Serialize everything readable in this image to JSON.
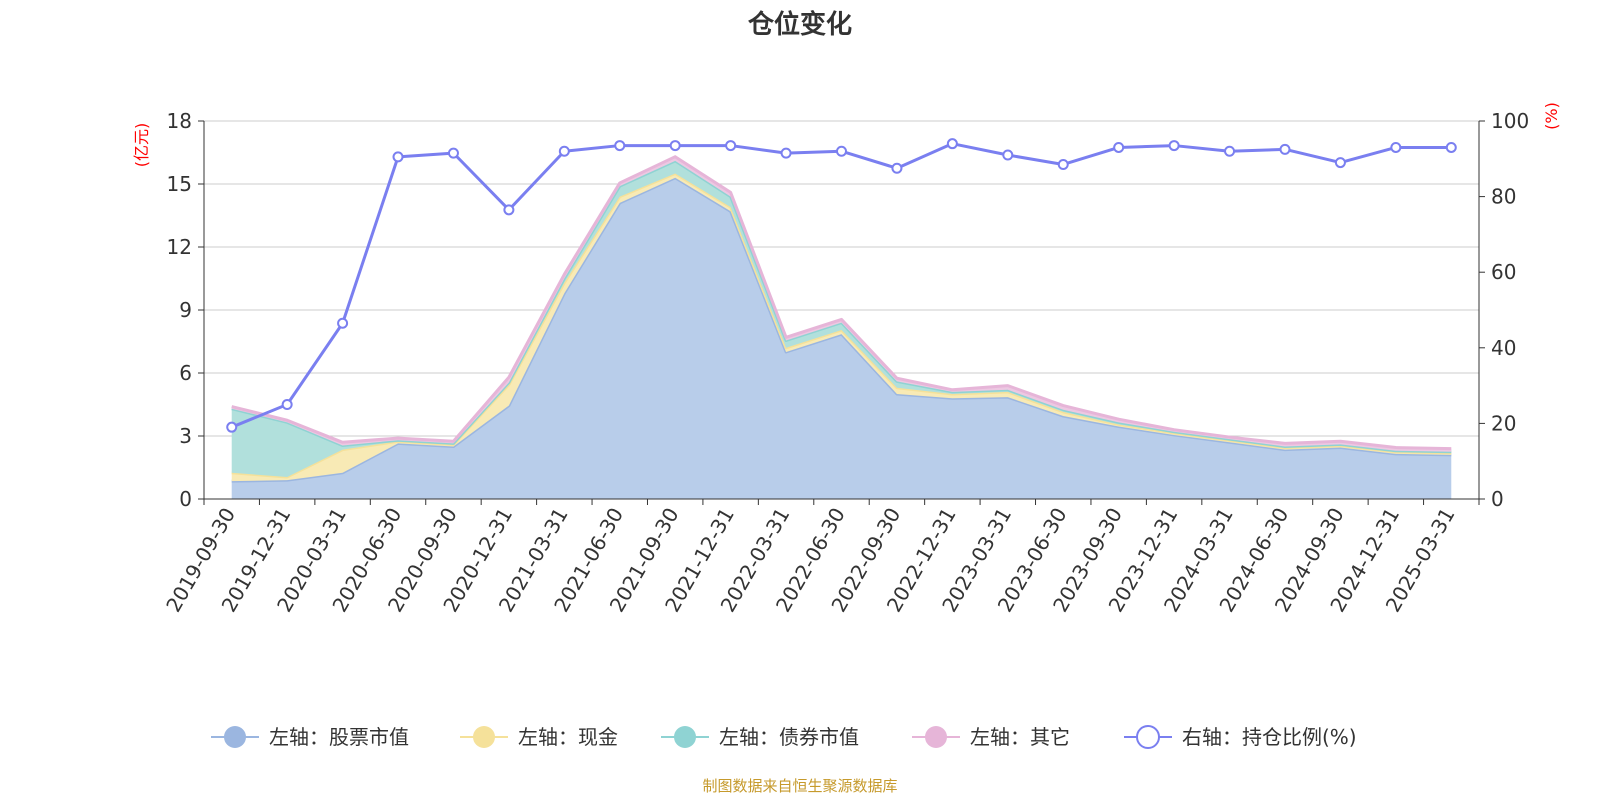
{
  "chart_data": {
    "type": "area",
    "title": "仓位变化",
    "left_axis_unit": "(亿元)",
    "right_axis_unit": "(%)",
    "left_ylim": [
      0,
      18
    ],
    "left_ticks": [
      0,
      3,
      6,
      9,
      12,
      15,
      18
    ],
    "right_ylim": [
      0,
      100
    ],
    "right_ticks": [
      0,
      20,
      40,
      60,
      80,
      100
    ],
    "categories": [
      "2019-09-30",
      "2019-12-31",
      "2020-03-31",
      "2020-06-30",
      "2020-09-30",
      "2020-12-31",
      "2021-03-31",
      "2021-06-30",
      "2021-09-30",
      "2021-12-31",
      "2022-03-31",
      "2022-06-30",
      "2022-09-30",
      "2022-12-31",
      "2023-03-31",
      "2023-06-30",
      "2023-09-30",
      "2023-12-31",
      "2024-03-31",
      "2024-06-30",
      "2024-09-30",
      "2024-12-31",
      "2025-03-31"
    ],
    "series": [
      {
        "name": "左轴：股票市值",
        "axis": "left",
        "kind": "stacked-area",
        "color": "#9bb6e0",
        "fill": "#b8cdea",
        "values": [
          0.85,
          0.9,
          1.25,
          2.65,
          2.5,
          4.45,
          9.8,
          14.1,
          15.3,
          13.7,
          7.0,
          7.85,
          5.0,
          4.8,
          4.85,
          3.95,
          3.45,
          3.05,
          2.7,
          2.35,
          2.45,
          2.15,
          2.1
        ]
      },
      {
        "name": "左轴：现金",
        "axis": "left",
        "kind": "stacked-area",
        "color": "#f5e19a",
        "fill": "#f8eab5",
        "values": [
          0.4,
          0.15,
          1.1,
          0.1,
          0.1,
          1.0,
          0.5,
          0.3,
          0.2,
          0.2,
          0.2,
          0.2,
          0.3,
          0.2,
          0.25,
          0.2,
          0.1,
          0.1,
          0.1,
          0.1,
          0.1,
          0.1,
          0.1
        ]
      },
      {
        "name": "左轴：债券市值",
        "axis": "left",
        "kind": "stacked-area",
        "color": "#8fd3d3",
        "fill": "#b1e0dc",
        "values": [
          3.05,
          2.6,
          0.2,
          0.05,
          0.05,
          0.1,
          0.2,
          0.5,
          0.6,
          0.5,
          0.35,
          0.35,
          0.3,
          0.1,
          0.1,
          0.1,
          0.1,
          0.05,
          0.05,
          0.05,
          0.05,
          0.05,
          0.05
        ]
      },
      {
        "name": "左轴：其它",
        "axis": "left",
        "kind": "stacked-area",
        "color": "#e6b5d8",
        "fill": "#edc8e2",
        "values": [
          0.1,
          0.1,
          0.15,
          0.1,
          0.1,
          0.25,
          0.2,
          0.15,
          0.2,
          0.2,
          0.15,
          0.15,
          0.15,
          0.1,
          0.2,
          0.2,
          0.15,
          0.1,
          0.1,
          0.15,
          0.15,
          0.15,
          0.15
        ]
      },
      {
        "name": "右轴：持仓比例(%)",
        "axis": "right",
        "kind": "line",
        "color": "#7a7ff0",
        "values": [
          19,
          25,
          46.5,
          90.5,
          91.5,
          76.5,
          92,
          93.5,
          93.5,
          93.5,
          91.5,
          92,
          87.5,
          94,
          91,
          88.5,
          93,
          93.5,
          92,
          92.5,
          89,
          93,
          93
        ]
      }
    ]
  },
  "source_note": "制图数据来自恒生聚源数据库"
}
